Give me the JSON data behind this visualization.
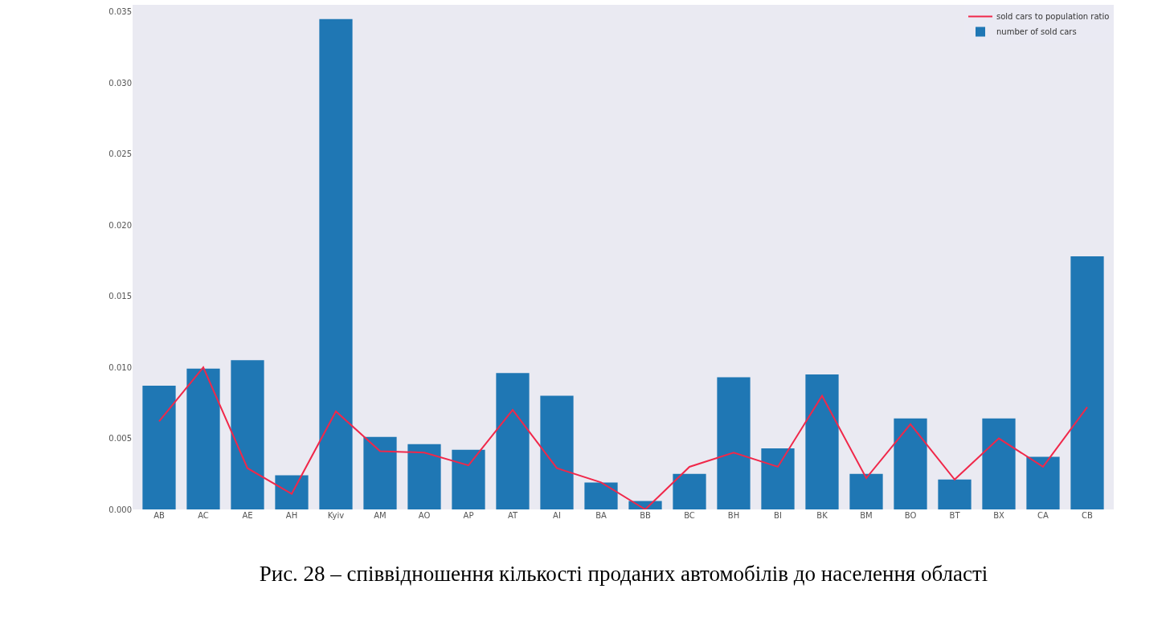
{
  "chart_data": {
    "type": "bar",
    "categories": [
      "AB",
      "AC",
      "AE",
      "AH",
      "Kyiv",
      "AM",
      "AO",
      "AP",
      "AT",
      "AI",
      "BA",
      "BB",
      "BC",
      "BH",
      "BI",
      "BK",
      "BM",
      "BO",
      "BT",
      "BX",
      "CA",
      "CB"
    ],
    "series": [
      {
        "name": "sold cars to population ratio",
        "type": "line",
        "color": "#f0284a",
        "values": [
          0.0062,
          0.01,
          0.0029,
          0.0011,
          0.0069,
          0.0041,
          0.004,
          0.0031,
          0.007,
          0.0029,
          0.0019,
          0.0,
          0.003,
          0.004,
          0.003,
          0.008,
          0.0022,
          0.006,
          0.0021,
          0.005,
          0.003,
          0.0072
        ]
      },
      {
        "name": "number of sold cars",
        "color": "#1f77b4",
        "values": [
          0.0087,
          0.0099,
          0.0105,
          0.0024,
          0.0345,
          0.0051,
          0.0046,
          0.0042,
          0.0096,
          0.008,
          0.0019,
          0.0006,
          0.0025,
          0.0093,
          0.0043,
          0.0095,
          0.0025,
          0.0064,
          0.0021,
          0.0064,
          0.0037,
          0.0178
        ]
      }
    ],
    "ylim": [
      0,
      0.0355
    ],
    "yticks": [
      {
        "value": 0,
        "label": "0.000"
      },
      {
        "value": 0.005,
        "label": "0.005"
      },
      {
        "value": 0.01,
        "label": "0.010"
      },
      {
        "value": 0.015,
        "label": "0.015"
      },
      {
        "value": 0.02,
        "label": "0.020"
      },
      {
        "value": 0.025,
        "label": "0.025"
      },
      {
        "value": 0.03,
        "label": "0.030"
      },
      {
        "value": 0.035,
        "label": "0.035"
      }
    ],
    "grid": false,
    "legend": "top right",
    "annotations": [
      "Рис. 28 – співвідношення кількості проданих автомобілів до населення області"
    ]
  }
}
